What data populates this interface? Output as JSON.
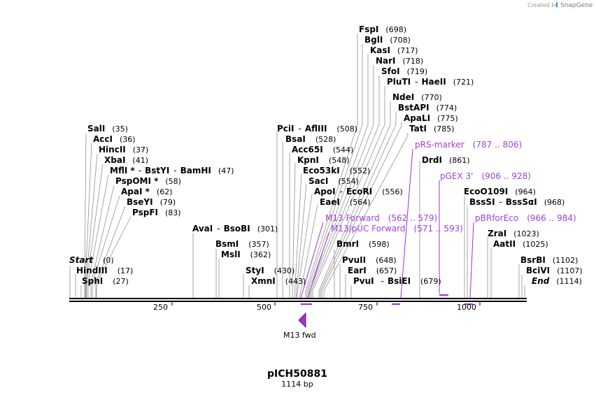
{
  "credit": {
    "text": "Created by",
    "brand": "SnapGene"
  },
  "plasmid": {
    "name": "pICH50881",
    "length": "1114 bp"
  },
  "ruler": {
    "ticks": [
      "250",
      "500",
      "750",
      "1000"
    ]
  },
  "colors": {
    "feature": "#a040e0",
    "line": "#000000"
  },
  "enzymes": {
    "fspi": {
      "name": "FspI",
      "pos": "(698)"
    },
    "bgli": {
      "name": "BglI",
      "pos": "(708)"
    },
    "kasi": {
      "name": "KasI",
      "pos": "(717)"
    },
    "nari": {
      "name": "NarI",
      "pos": "(718)"
    },
    "sfoi": {
      "name": "SfoI",
      "pos": "(719)"
    },
    "pluti": {
      "name": "PluTI",
      "name2": "HaeII",
      "pos": "(721)"
    },
    "ndei": {
      "name": "NdeI",
      "pos": "(770)"
    },
    "bstapi": {
      "name": "BstAPI",
      "pos": "(774)"
    },
    "apali": {
      "name": "ApaLI",
      "pos": "(775)"
    },
    "tati": {
      "name": "TatI",
      "pos": "(785)"
    },
    "drdi": {
      "name": "DrdI",
      "pos": "(861)"
    },
    "ecoo109i": {
      "name": "EcoO109I",
      "pos": "(964)"
    },
    "bsssi": {
      "name": "BssSI",
      "name2": "BssSαI",
      "pos": "(968)"
    },
    "zrai": {
      "name": "ZraI",
      "pos": "(1023)"
    },
    "aatii": {
      "name": "AatII",
      "pos": "(1025)"
    },
    "bsrbi": {
      "name": "BsrBI",
      "pos": "(1102)"
    },
    "bcivi": {
      "name": "BciVI",
      "pos": "(1107)"
    },
    "end": {
      "name": "End",
      "pos": "(1114)"
    },
    "sali": {
      "name": "SalI",
      "pos": "(35)"
    },
    "acci": {
      "name": "AccI",
      "pos": "(36)"
    },
    "hincii": {
      "name": "HincII",
      "pos": "(37)"
    },
    "xbai": {
      "name": "XbaI",
      "pos": "(41)"
    },
    "mfli": {
      "name": "MflI *",
      "name2": "BstYI",
      "name3": "BamHI",
      "pos": "(47)"
    },
    "pspomi": {
      "name": "PspOMI *",
      "pos": "(58)"
    },
    "apai": {
      "name": "ApaI *",
      "pos": "(62)"
    },
    "bseyi": {
      "name": "BseYI",
      "pos": "(79)"
    },
    "pspfi": {
      "name": "PspFI",
      "pos": "(83)"
    },
    "start": {
      "name": "Start",
      "pos": "(0)"
    },
    "hindiii": {
      "name": "HindIII",
      "pos": "(17)"
    },
    "sphi": {
      "name": "SphI",
      "pos": "(27)"
    },
    "avai": {
      "name": "AvaI",
      "name2": "BsoBI",
      "pos": "(301)"
    },
    "bsmi": {
      "name": "BsmI",
      "pos": "(357)"
    },
    "msli": {
      "name": "MslI",
      "pos": "(362)"
    },
    "styi": {
      "name": "StyI",
      "pos": "(430)"
    },
    "xmni": {
      "name": "XmnI",
      "pos": "(443)"
    },
    "pcii": {
      "name": "PciI",
      "name2": "AflIII",
      "pos": "(508)"
    },
    "bsai": {
      "name": "BsaI",
      "pos": "(528)"
    },
    "acc65i": {
      "name": "Acc65I",
      "pos": "(544)"
    },
    "kpni": {
      "name": "KpnI",
      "pos": "(548)"
    },
    "eco53ki": {
      "name": "Eco53kI",
      "pos": "(552)"
    },
    "saci": {
      "name": "SacI",
      "pos": "(554)"
    },
    "apoi": {
      "name": "ApoI",
      "name2": "EcoRI",
      "pos": "(556)"
    },
    "eaei": {
      "name": "EaeI",
      "pos": "(564)"
    },
    "bmri": {
      "name": "BmrI",
      "pos": "(598)"
    },
    "pvuii": {
      "name": "PvuII",
      "pos": "(648)"
    },
    "eari": {
      "name": "EarI",
      "pos": "(657)"
    },
    "pvui": {
      "name": "PvuI",
      "name2": "BsiEI",
      "pos": "(679)"
    }
  },
  "features": {
    "prs": {
      "name": "pRS-marker",
      "range": "(787 .. 806)"
    },
    "pgex": {
      "name": "pGEX 3'",
      "range": "(906 .. 928)"
    },
    "pbr": {
      "name": "pBRforEco",
      "range": "(966 .. 984)"
    },
    "m13f": {
      "name": "M13 Forward",
      "range": "(562 .. 579)"
    },
    "m13puc": {
      "name": "M13/pUC Forward",
      "range": "(571 .. 593)"
    },
    "m13fwd": {
      "name": "M13 fwd"
    }
  }
}
